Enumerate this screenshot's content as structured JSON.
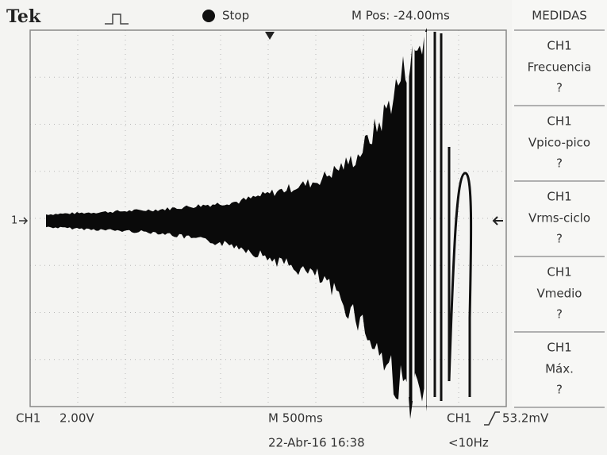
{
  "header": {
    "brand": "Tek",
    "status": "Stop",
    "position": "M Pos: -24.00ms"
  },
  "menu": {
    "title": "MEDIDAS",
    "items": [
      {
        "channel": "CH1",
        "measurement": "Frecuencia",
        "value": "?"
      },
      {
        "channel": "CH1",
        "measurement": "Vpico-pico",
        "value": "?"
      },
      {
        "channel": "CH1",
        "measurement": "Vrms-ciclo",
        "value": "?"
      },
      {
        "channel": "CH1",
        "measurement": "Vmedio",
        "value": "?"
      },
      {
        "channel": "CH1",
        "measurement": "Máx.",
        "value": "?"
      }
    ]
  },
  "footer": {
    "channel": "CH1",
    "scale": "2.00V",
    "timebase": "M 500ms",
    "trigger_source": "CH1",
    "trigger_level": "53.2mV",
    "date": "22-Abr-16 16:38",
    "trigger_frequency": "<10Hz"
  },
  "markers": {
    "channel": "1"
  }
}
